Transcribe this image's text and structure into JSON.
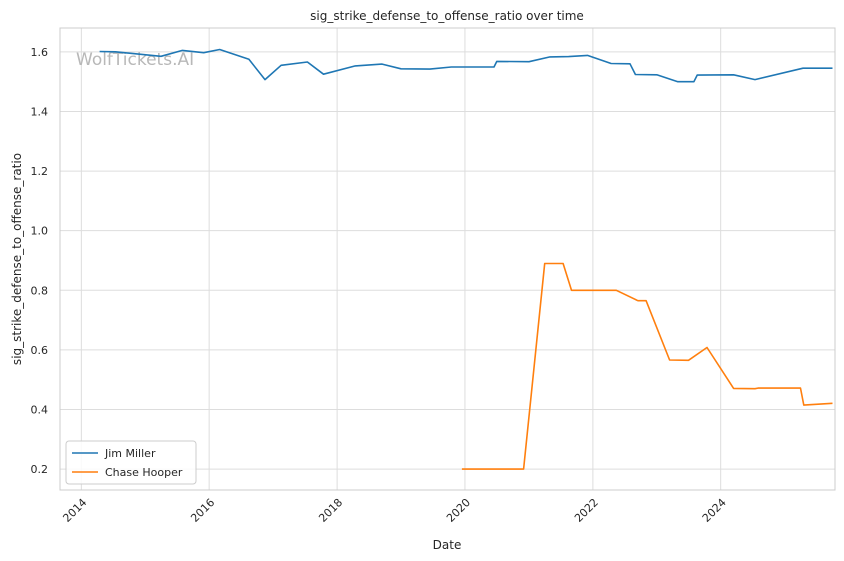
{
  "chart_data": {
    "type": "line",
    "title": "sig_strike_defense_to_offense_ratio over time",
    "xlabel": "Date",
    "ylabel": "sig_strike_defense_to_offense_ratio",
    "watermark": "WolfTickets.AI",
    "x_range": [
      "2013-09-01",
      "2025-10-15"
    ],
    "ylim": [
      0.13,
      1.68
    ],
    "x_ticks": [
      "2014",
      "2016",
      "2018",
      "2020",
      "2022",
      "2024"
    ],
    "y_ticks": [
      0.2,
      0.4,
      0.6,
      0.8,
      1.0,
      1.2,
      1.4,
      1.6
    ],
    "grid": true,
    "legend_position": "lower-left",
    "series": [
      {
        "name": "Jim Miller",
        "color": "#1f77b4",
        "points": [
          [
            "2014-04-15",
            1.601
          ],
          [
            "2014-07-15",
            1.6
          ],
          [
            "2015-04-01",
            1.585
          ],
          [
            "2015-08-01",
            1.605
          ],
          [
            "2015-12-01",
            1.597
          ],
          [
            "2016-03-01",
            1.608
          ],
          [
            "2016-08-15",
            1.575
          ],
          [
            "2016-11-15",
            1.507
          ],
          [
            "2017-02-15",
            1.555
          ],
          [
            "2017-07-15",
            1.566
          ],
          [
            "2017-10-15",
            1.525
          ],
          [
            "2018-04-15",
            1.553
          ],
          [
            "2018-09-15",
            1.559
          ],
          [
            "2019-01-01",
            1.543
          ],
          [
            "2019-06-15",
            1.542
          ],
          [
            "2019-10-15",
            1.549
          ],
          [
            "2020-06-15",
            1.549
          ],
          [
            "2020-07-01",
            1.568
          ],
          [
            "2021-01-01",
            1.567
          ],
          [
            "2021-05-01",
            1.583
          ],
          [
            "2021-08-15",
            1.584
          ],
          [
            "2021-12-01",
            1.588
          ],
          [
            "2022-04-15",
            1.561
          ],
          [
            "2022-08-01",
            1.56
          ],
          [
            "2022-09-01",
            1.524
          ],
          [
            "2023-01-01",
            1.523
          ],
          [
            "2023-05-01",
            1.5
          ],
          [
            "2023-08-01",
            1.5
          ],
          [
            "2023-08-20",
            1.522
          ],
          [
            "2024-03-15",
            1.523
          ],
          [
            "2024-07-15",
            1.507
          ],
          [
            "2025-04-15",
            1.545
          ],
          [
            "2025-10-01",
            1.545
          ]
        ]
      },
      {
        "name": "Chase Hooper",
        "color": "#ff7f0e",
        "points": [
          [
            "2019-12-15",
            0.2
          ],
          [
            "2020-12-01",
            0.2
          ],
          [
            "2021-04-01",
            0.89
          ],
          [
            "2021-07-15",
            0.89
          ],
          [
            "2021-09-01",
            0.8
          ],
          [
            "2022-05-15",
            0.8
          ],
          [
            "2022-09-15",
            0.765
          ],
          [
            "2022-11-01",
            0.765
          ],
          [
            "2023-03-15",
            0.566
          ],
          [
            "2023-07-01",
            0.565
          ],
          [
            "2023-10-15",
            0.608
          ],
          [
            "2024-03-15",
            0.471
          ],
          [
            "2024-07-15",
            0.47
          ],
          [
            "2024-08-01",
            0.472
          ],
          [
            "2025-04-01",
            0.472
          ],
          [
            "2025-04-20",
            0.415
          ],
          [
            "2025-10-01",
            0.421
          ]
        ]
      }
    ]
  }
}
